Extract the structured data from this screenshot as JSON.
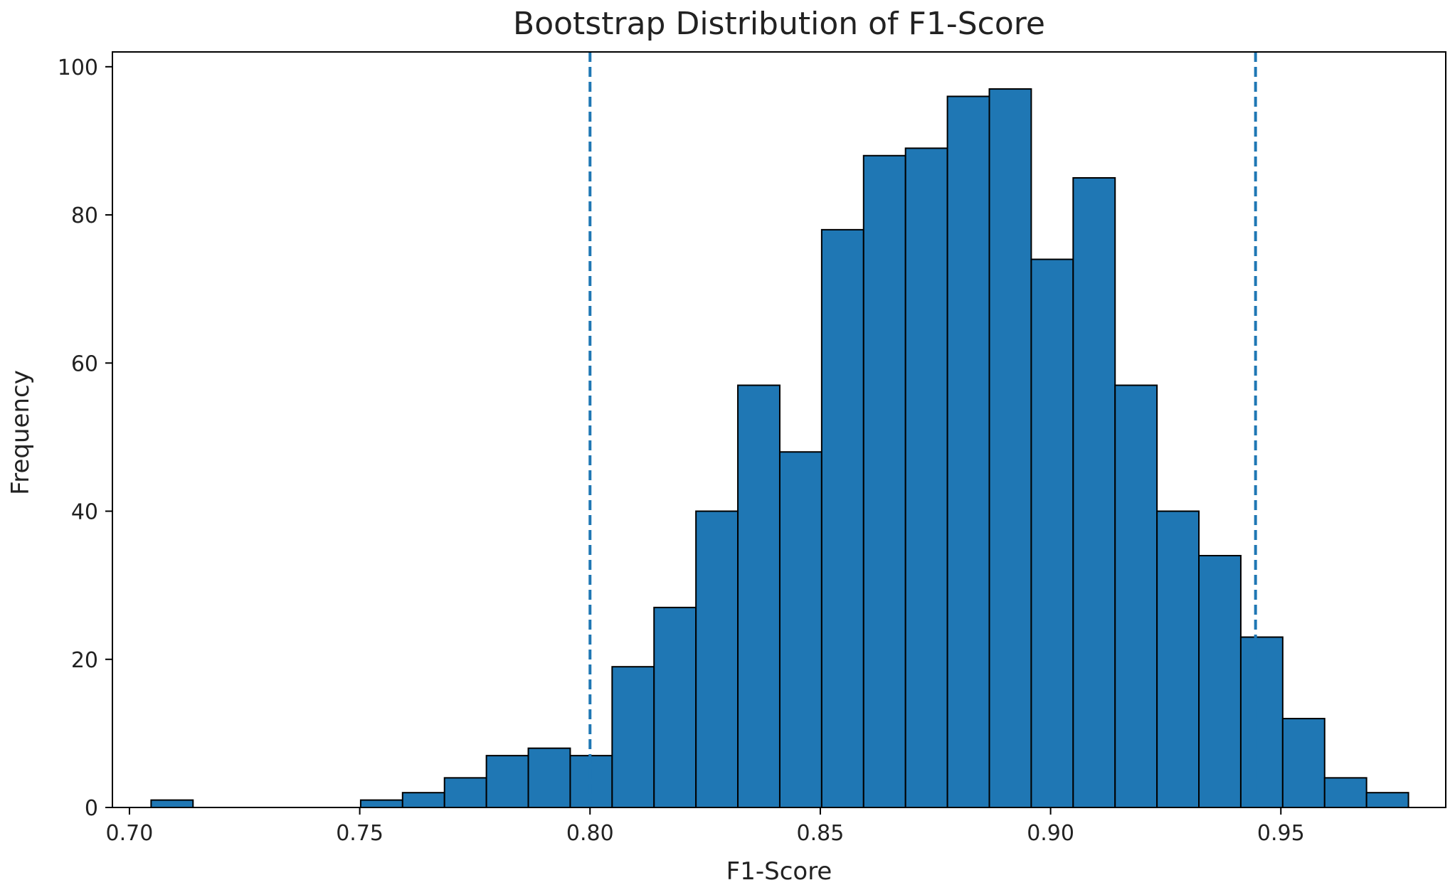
{
  "chart_data": {
    "type": "bar",
    "subtype": "histogram",
    "title": "Bootstrap Distribution of F1-Score",
    "xlabel": "F1-Score",
    "ylabel": "Frequency",
    "xlim": [
      0.6963,
      0.9858
    ],
    "ylim": [
      0,
      102
    ],
    "xticks": [
      "0.70",
      "0.75",
      "0.80",
      "0.85",
      "0.90",
      "0.95"
    ],
    "xtick_values": [
      0.7,
      0.75,
      0.8,
      0.85,
      0.9,
      0.95
    ],
    "yticks": [
      "0",
      "20",
      "40",
      "60",
      "80",
      "100"
    ],
    "ytick_values": [
      0,
      20,
      40,
      60,
      80,
      100
    ],
    "bin_start": 0.7047,
    "bin_width": 0.0091,
    "values": [
      1,
      0,
      0,
      0,
      0,
      1,
      2,
      4,
      7,
      8,
      7,
      19,
      27,
      40,
      57,
      48,
      78,
      88,
      89,
      96,
      97,
      74,
      85,
      57,
      40,
      34,
      23,
      12,
      4,
      2
    ],
    "reference_lines": [
      0.8,
      0.9445
    ],
    "colors": {
      "bar": "#1f77b4",
      "bar_edge": "#000000",
      "reference_line": "#1f77b4"
    },
    "grid": false,
    "legend": "none"
  }
}
